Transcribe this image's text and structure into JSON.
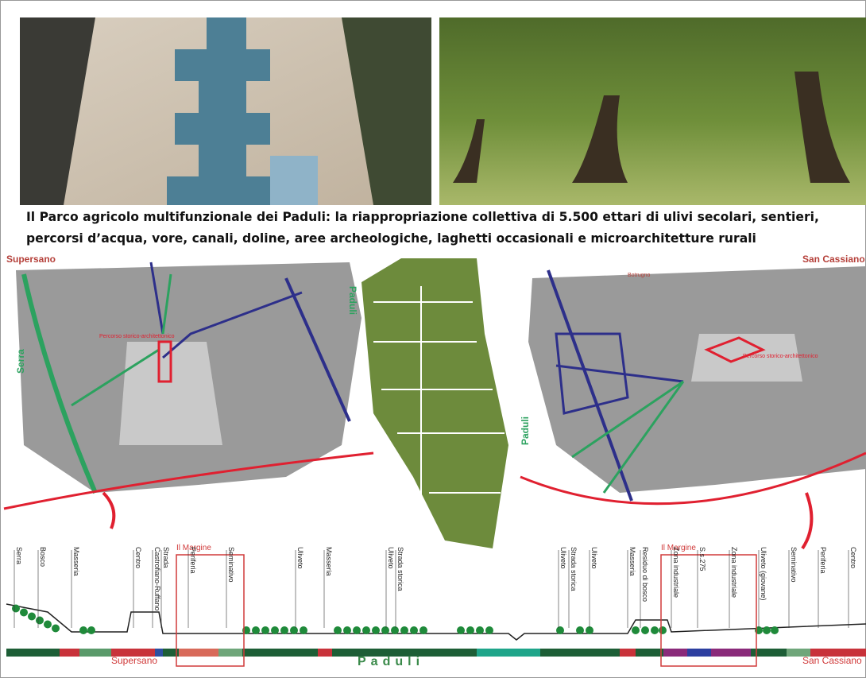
{
  "caption": [
    "Il Parco agricolo multifunzionale dei Paduli: la riappropriazione collettiva di 5.500  ettari  di  ulivi secolari, sentieri,",
    "percorsi d’acqua, vore, canali, doline, aree archeologiche, laghetti occasionali e microarchitetture  rurali"
  ],
  "left_map": {
    "town": "Supersano",
    "labels": [
      "Serra",
      "Paduli",
      "Percorso storico-architettonico"
    ]
  },
  "right_map": {
    "town": "San Cassiano",
    "labels": [
      "Botrugno",
      "Paduli",
      "Percorso storico-architettonico"
    ]
  },
  "profile": {
    "margins": [
      "Il Margine",
      "Il Margine"
    ],
    "landmarks": [
      "Serra",
      "Bosco",
      "Masseria",
      "Centro",
      "Castrofiano-Ruffano",
      "Strada",
      "Periferia",
      "Seminativo",
      "Uliveto",
      "Masseria",
      "Uliveto",
      "Strada storica",
      "Uliveto",
      "Strada storica",
      "Uliveto",
      "Masseria",
      "Residuo di bosco",
      "Zona industriale",
      "S.s.275",
      "Zona industriale",
      "Uliveto (giovane)",
      "Seminativo",
      "Periferia",
      "Centro"
    ],
    "bottom": [
      "Supersano",
      "Paduli",
      "San Cassiano"
    ]
  }
}
